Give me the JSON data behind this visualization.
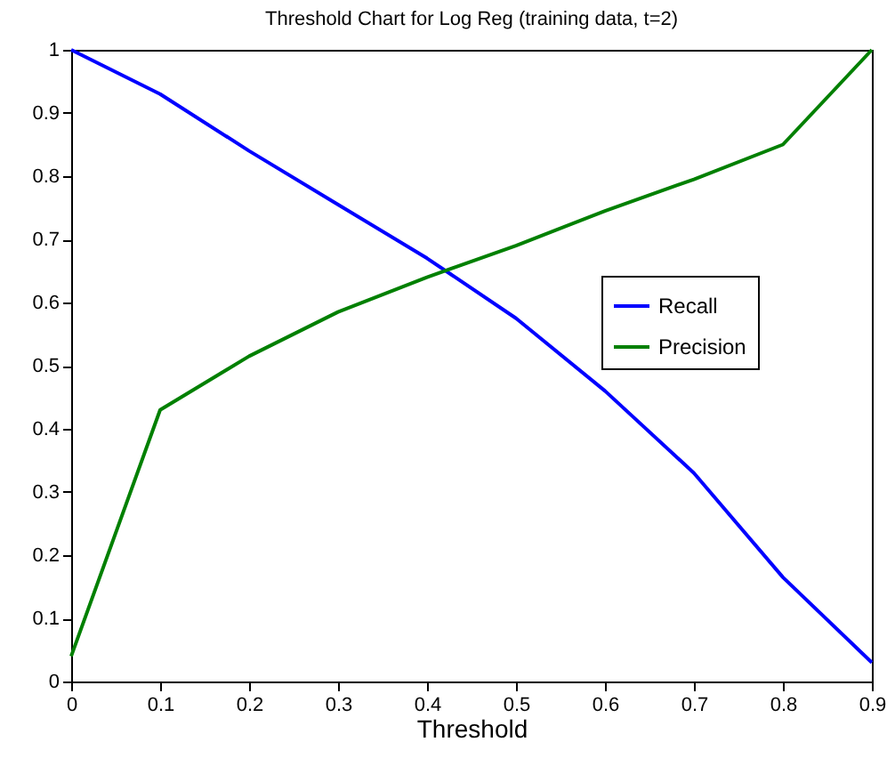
{
  "chart_data": {
    "type": "line",
    "title": "Threshold Chart for Log Reg (training data, t=2)",
    "xlabel": "Threshold",
    "x": [
      0,
      0.1,
      0.2,
      0.3,
      0.4,
      0.5,
      0.6,
      0.7,
      0.8,
      0.9
    ],
    "series": [
      {
        "name": "Recall",
        "color": "#0000ff",
        "values": [
          1.0,
          0.93,
          0.84,
          0.755,
          0.67,
          0.575,
          0.46,
          0.33,
          0.165,
          0.03
        ]
      },
      {
        "name": "Precision",
        "color": "#008000",
        "values": [
          0.04,
          0.43,
          0.515,
          0.585,
          0.64,
          0.69,
          0.745,
          0.795,
          0.85,
          1.0
        ]
      }
    ],
    "xlim": [
      0,
      0.9
    ],
    "xticks": [
      0,
      0.1,
      0.2,
      0.3,
      0.4,
      0.5,
      0.6,
      0.7,
      0.8,
      0.9
    ],
    "ylim": [
      0,
      1
    ],
    "yticks": [
      0,
      0.1,
      0.2,
      0.3,
      0.4,
      0.5,
      0.6,
      0.7,
      0.8,
      0.9,
      1
    ],
    "legend": "right",
    "grid": false,
    "line_style": "solid",
    "marker": "none"
  }
}
